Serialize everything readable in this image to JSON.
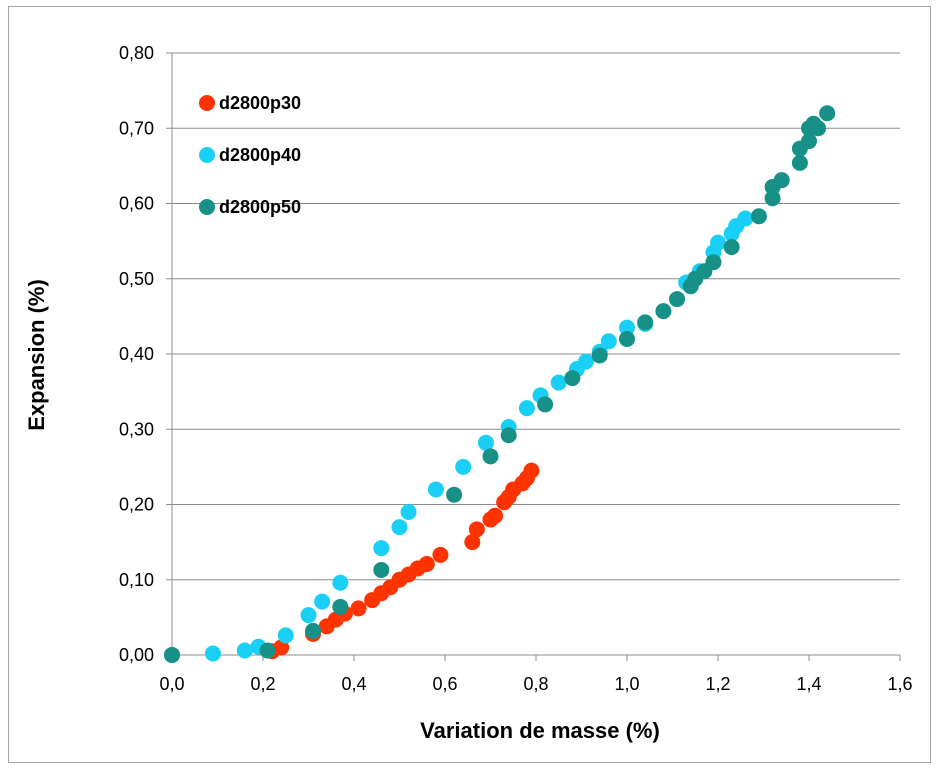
{
  "chart_data": {
    "type": "scatter",
    "title": "",
    "xlabel": "Variation de masse (%)",
    "ylabel": "Expansion (%)",
    "xlim": [
      0,
      1.6
    ],
    "ylim": [
      0,
      0.8
    ],
    "x_ticks": [
      "0,0",
      "0,2",
      "0,4",
      "0,6",
      "0,8",
      "1,0",
      "1,2",
      "1,4",
      "1,6"
    ],
    "y_ticks": [
      "0,00",
      "0,10",
      "0,20",
      "0,30",
      "0,40",
      "0,50",
      "0,60",
      "0,70",
      "0,80"
    ],
    "grid": "horizontal",
    "legend_position": "top-left",
    "series": [
      {
        "name": "d2800p30",
        "color": "#ff3300",
        "points": [
          [
            0.0,
            0.0
          ],
          [
            0.22,
            0.005
          ],
          [
            0.24,
            0.01
          ],
          [
            0.31,
            0.028
          ],
          [
            0.34,
            0.038
          ],
          [
            0.36,
            0.047
          ],
          [
            0.38,
            0.055
          ],
          [
            0.41,
            0.062
          ],
          [
            0.44,
            0.073
          ],
          [
            0.46,
            0.082
          ],
          [
            0.48,
            0.09
          ],
          [
            0.5,
            0.1
          ],
          [
            0.52,
            0.107
          ],
          [
            0.54,
            0.115
          ],
          [
            0.56,
            0.121
          ],
          [
            0.59,
            0.133
          ],
          [
            0.66,
            0.15
          ],
          [
            0.67,
            0.167
          ],
          [
            0.7,
            0.18
          ],
          [
            0.71,
            0.185
          ],
          [
            0.73,
            0.203
          ],
          [
            0.74,
            0.21
          ],
          [
            0.75,
            0.22
          ],
          [
            0.77,
            0.228
          ],
          [
            0.78,
            0.235
          ],
          [
            0.79,
            0.245
          ]
        ]
      },
      {
        "name": "d2800p40",
        "color": "#19cff5",
        "points": [
          [
            0.0,
            0.0
          ],
          [
            0.09,
            0.002
          ],
          [
            0.16,
            0.006
          ],
          [
            0.19,
            0.011
          ],
          [
            0.25,
            0.026
          ],
          [
            0.3,
            0.053
          ],
          [
            0.33,
            0.071
          ],
          [
            0.37,
            0.096
          ],
          [
            0.46,
            0.142
          ],
          [
            0.5,
            0.17
          ],
          [
            0.52,
            0.19
          ],
          [
            0.58,
            0.22
          ],
          [
            0.64,
            0.25
          ],
          [
            0.69,
            0.282
          ],
          [
            0.74,
            0.303
          ],
          [
            0.78,
            0.328
          ],
          [
            0.81,
            0.345
          ],
          [
            0.85,
            0.362
          ],
          [
            0.89,
            0.38
          ],
          [
            0.91,
            0.39
          ],
          [
            0.94,
            0.403
          ],
          [
            0.96,
            0.417
          ],
          [
            1.0,
            0.435
          ],
          [
            1.04,
            0.44
          ],
          [
            1.13,
            0.495
          ],
          [
            1.16,
            0.51
          ],
          [
            1.19,
            0.535
          ],
          [
            1.2,
            0.548
          ],
          [
            1.23,
            0.56
          ],
          [
            1.24,
            0.57
          ],
          [
            1.26,
            0.58
          ]
        ]
      },
      {
        "name": "d2800p50",
        "color": "#179088",
        "points": [
          [
            0.0,
            0.0
          ],
          [
            0.21,
            0.006
          ],
          [
            0.31,
            0.032
          ],
          [
            0.37,
            0.064
          ],
          [
            0.46,
            0.113
          ],
          [
            0.62,
            0.213
          ],
          [
            0.7,
            0.264
          ],
          [
            0.74,
            0.292
          ],
          [
            0.82,
            0.333
          ],
          [
            0.88,
            0.368
          ],
          [
            0.94,
            0.398
          ],
          [
            1.0,
            0.42
          ],
          [
            1.04,
            0.442
          ],
          [
            1.08,
            0.457
          ],
          [
            1.11,
            0.473
          ],
          [
            1.14,
            0.49
          ],
          [
            1.15,
            0.5
          ],
          [
            1.17,
            0.51
          ],
          [
            1.19,
            0.522
          ],
          [
            1.23,
            0.542
          ],
          [
            1.29,
            0.583
          ],
          [
            1.32,
            0.607
          ],
          [
            1.32,
            0.622
          ],
          [
            1.34,
            0.631
          ],
          [
            1.38,
            0.654
          ],
          [
            1.38,
            0.673
          ],
          [
            1.4,
            0.683
          ],
          [
            1.4,
            0.7
          ],
          [
            1.41,
            0.706
          ],
          [
            1.42,
            0.7
          ],
          [
            1.44,
            0.72
          ]
        ]
      }
    ]
  }
}
